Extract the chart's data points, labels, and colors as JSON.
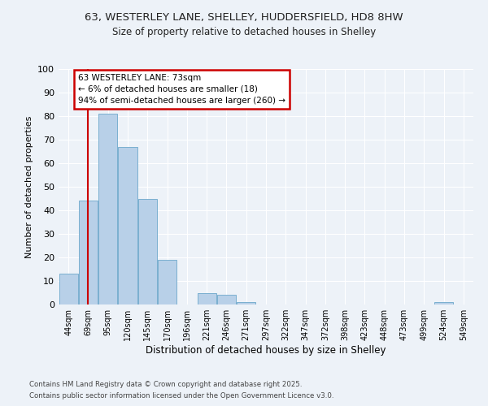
{
  "title1": "63, WESTERLEY LANE, SHELLEY, HUDDERSFIELD, HD8 8HW",
  "title2": "Size of property relative to detached houses in Shelley",
  "xlabel": "Distribution of detached houses by size in Shelley",
  "ylabel": "Number of detached properties",
  "categories": [
    "44sqm",
    "69sqm",
    "95sqm",
    "120sqm",
    "145sqm",
    "170sqm",
    "196sqm",
    "221sqm",
    "246sqm",
    "271sqm",
    "297sqm",
    "322sqm",
    "347sqm",
    "372sqm",
    "398sqm",
    "423sqm",
    "448sqm",
    "473sqm",
    "499sqm",
    "524sqm",
    "549sqm"
  ],
  "values": [
    13,
    44,
    81,
    67,
    45,
    19,
    0,
    5,
    4,
    1,
    0,
    0,
    0,
    0,
    0,
    0,
    0,
    0,
    0,
    1,
    0
  ],
  "bar_color": "#b8d0e8",
  "bar_edge_color": "#7aafd0",
  "red_line_x": 1.0,
  "annotation_line1": "63 WESTERLEY LANE: 73sqm",
  "annotation_line2": "← 6% of detached houses are smaller (18)",
  "annotation_line3": "94% of semi-detached houses are larger (260) →",
  "annotation_box_color": "#ffffff",
  "annotation_box_edge_color": "#cc0000",
  "footer1": "Contains HM Land Registry data © Crown copyright and database right 2025.",
  "footer2": "Contains public sector information licensed under the Open Government Licence v3.0.",
  "bg_color": "#edf2f8",
  "plot_bg_color": "#edf2f8",
  "ylim": [
    0,
    100
  ],
  "yticks": [
    0,
    10,
    20,
    30,
    40,
    50,
    60,
    70,
    80,
    90,
    100
  ]
}
